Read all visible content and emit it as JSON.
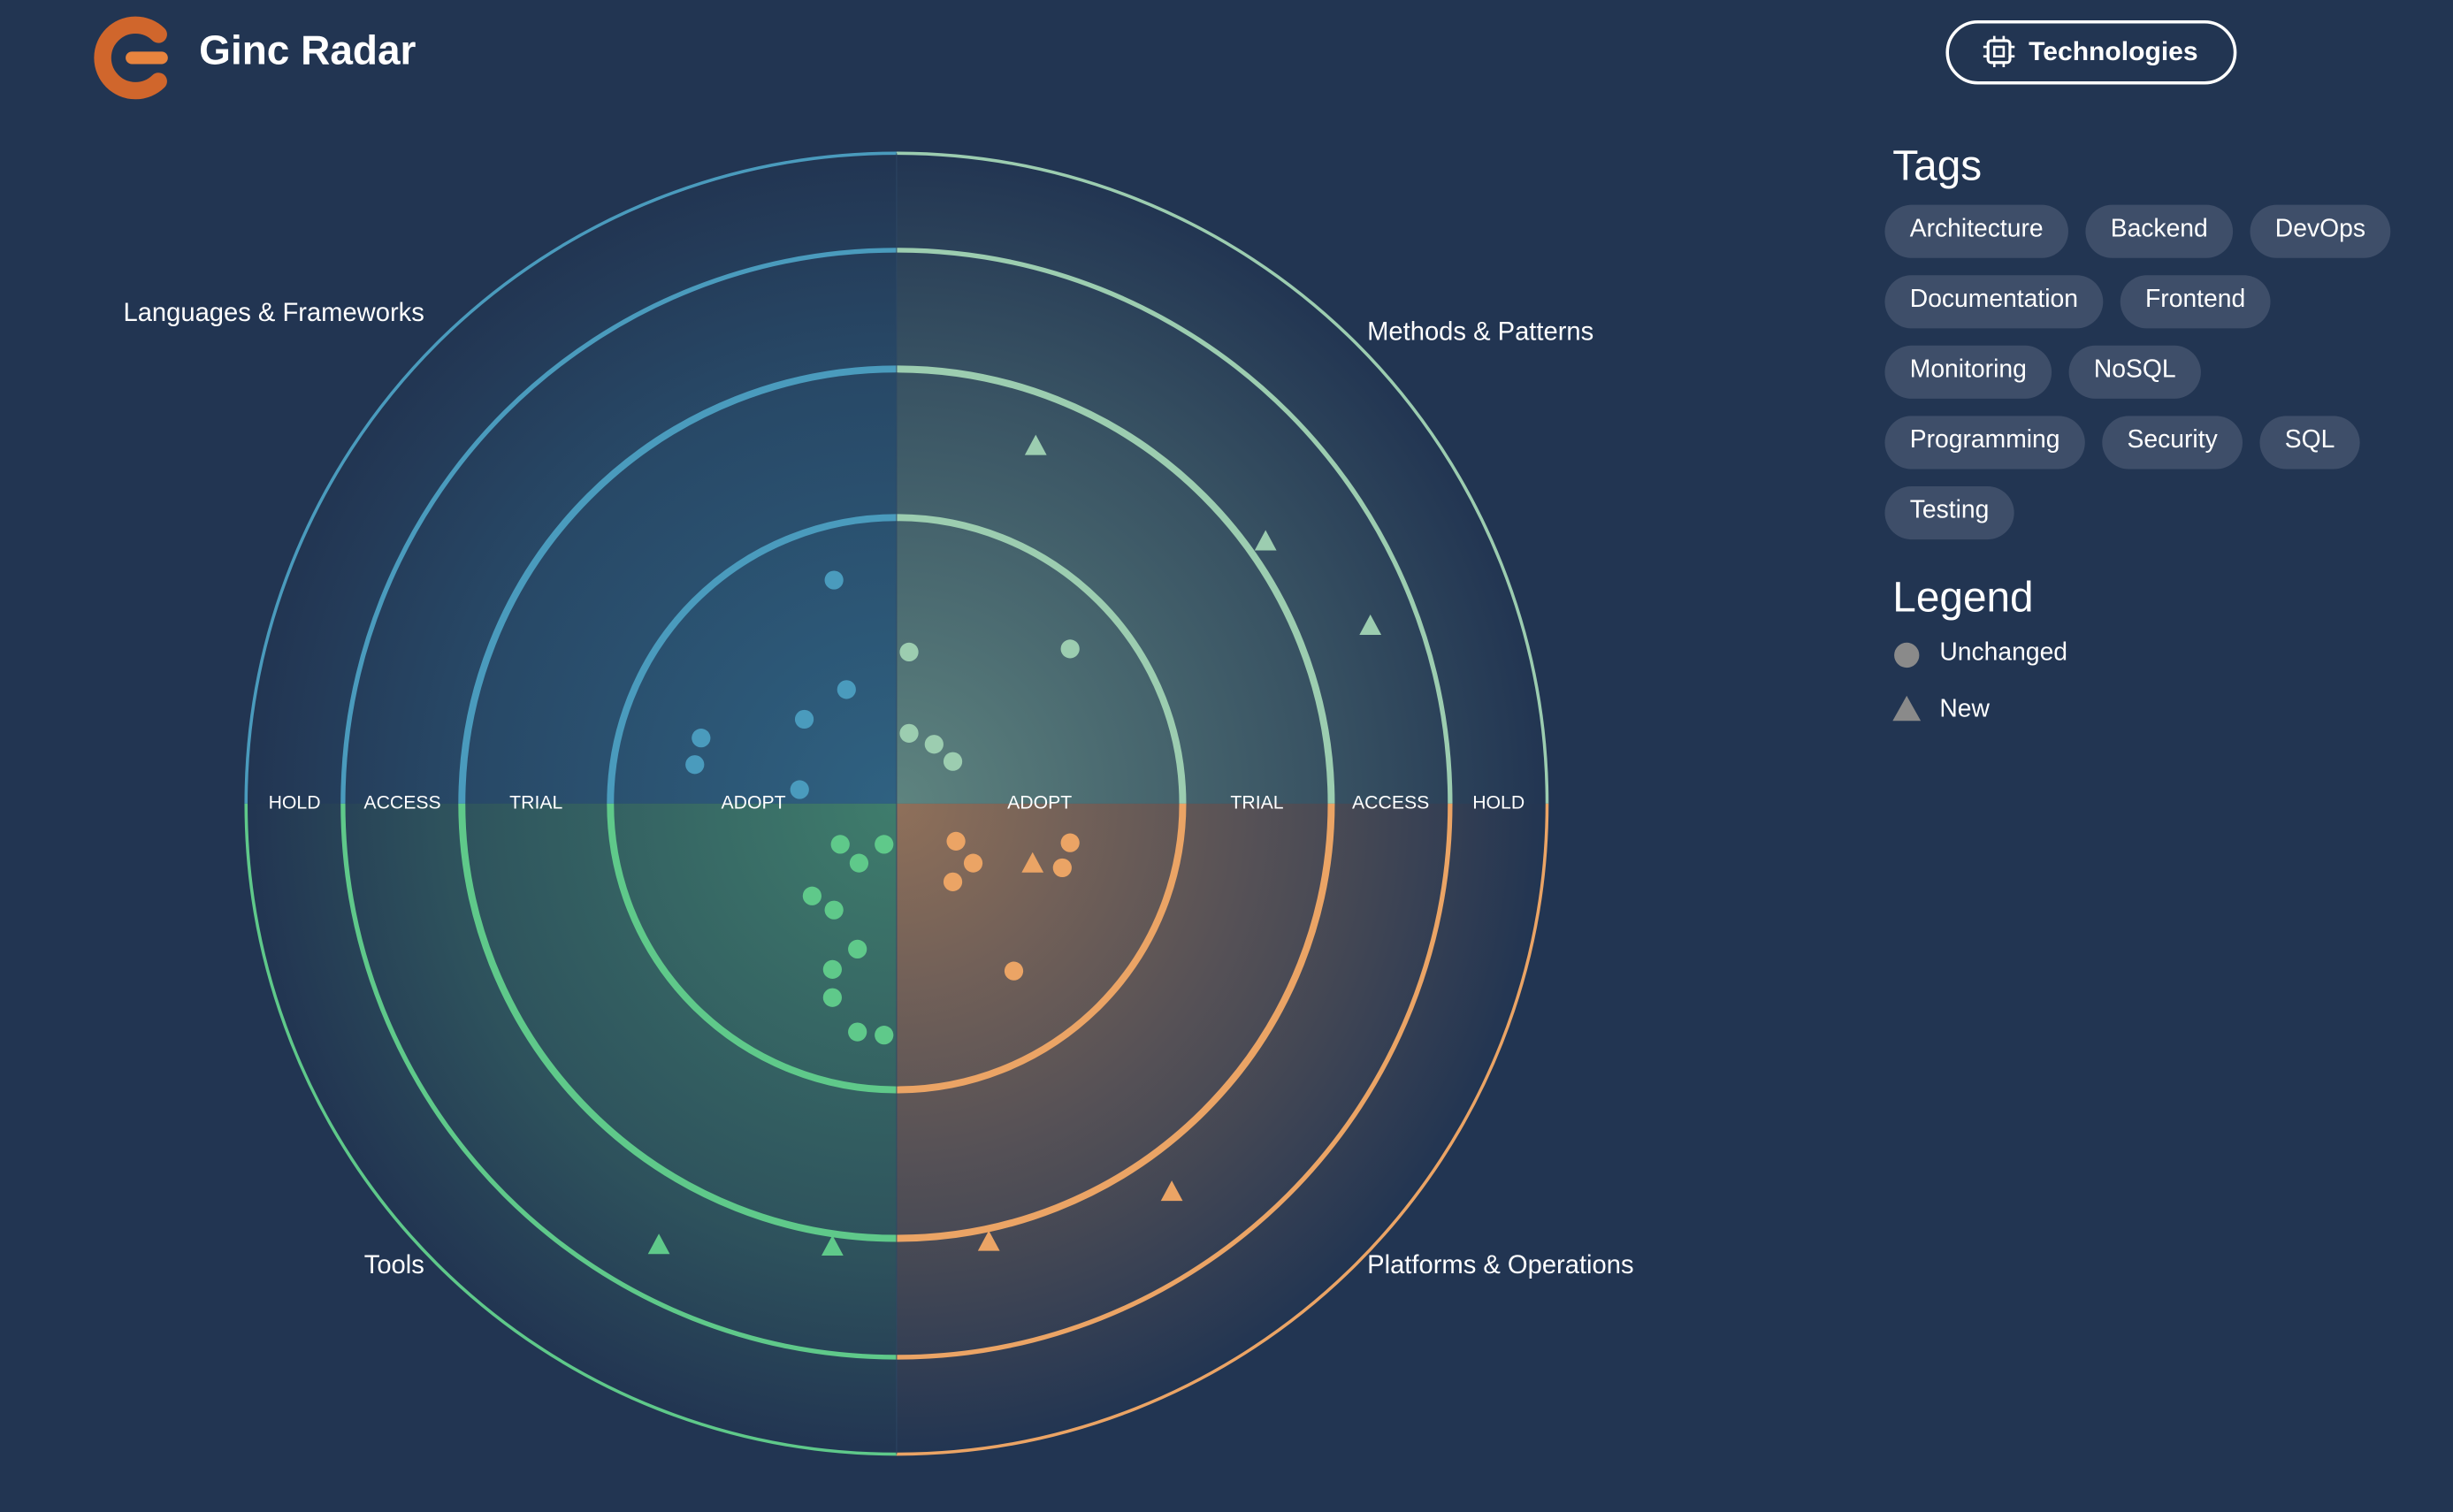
{
  "header": {
    "title": "Ginc Radar",
    "button": "Technologies"
  },
  "radar": {
    "quadrants": [
      "Languages & Frameworks",
      "Methods & Patterns",
      "Tools",
      "Platforms & Operations"
    ],
    "rings": [
      "ADOPT",
      "TRIAL",
      "ACCESS",
      "HOLD"
    ]
  },
  "tags": {
    "title": "Tags",
    "items": [
      "Architecture",
      "Backend",
      "DevOps",
      "Documentation",
      "Frontend",
      "Monitoring",
      "NoSQL",
      "Programming",
      "Security",
      "SQL",
      "Testing"
    ]
  },
  "legend": {
    "title": "Legend",
    "items": [
      "Unchanged",
      "New"
    ]
  }
}
